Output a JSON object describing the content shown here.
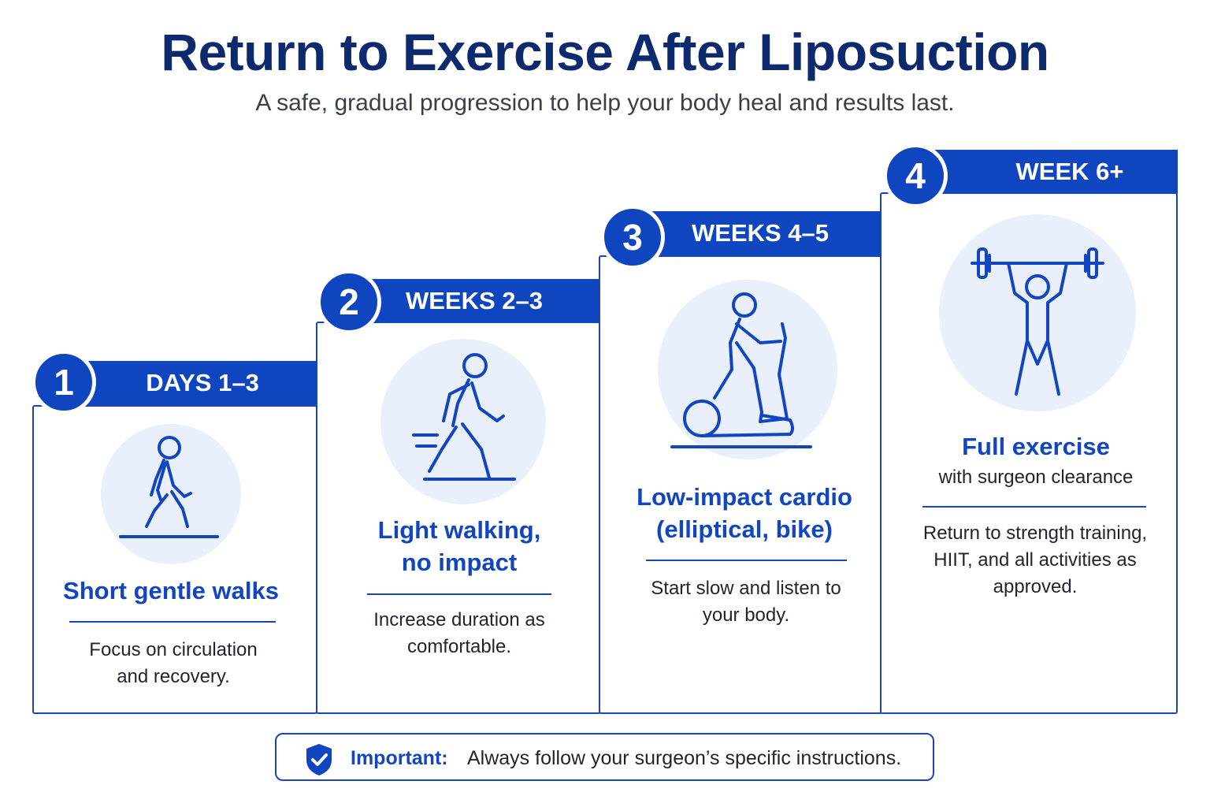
{
  "title": "Return to Exercise After Liposuction",
  "subtitle": "A safe, gradual progression to help your body heal and results last.",
  "accent_color": "#0f46c0",
  "steps": [
    {
      "number": "1",
      "period": "DAYS 1–3",
      "heading": "Short gentle walks",
      "subheading": "",
      "description": "Focus on circulation and recovery.",
      "icon": "walking-person-icon"
    },
    {
      "number": "2",
      "period": "WEEKS 2–3",
      "heading": "Light walking, no impact",
      "subheading": "",
      "description": "Increase duration as comfortable.",
      "icon": "brisk-walking-person-icon"
    },
    {
      "number": "3",
      "period": "WEEKS 4–5",
      "heading": "Low-impact cardio (elliptical, bike)",
      "subheading": "",
      "description": "Start slow and listen to your body.",
      "icon": "elliptical-trainer-icon"
    },
    {
      "number": "4",
      "period": "WEEK 6+",
      "heading": "Full exercise",
      "subheading": "with surgeon clearance",
      "description": "Return to strength training, HIIT, and all activities as approved.",
      "icon": "weightlifting-person-icon"
    }
  ],
  "notice": {
    "label": "Important:",
    "text": "Always follow your surgeon’s specific instructions.",
    "icon": "shield-check-icon"
  }
}
